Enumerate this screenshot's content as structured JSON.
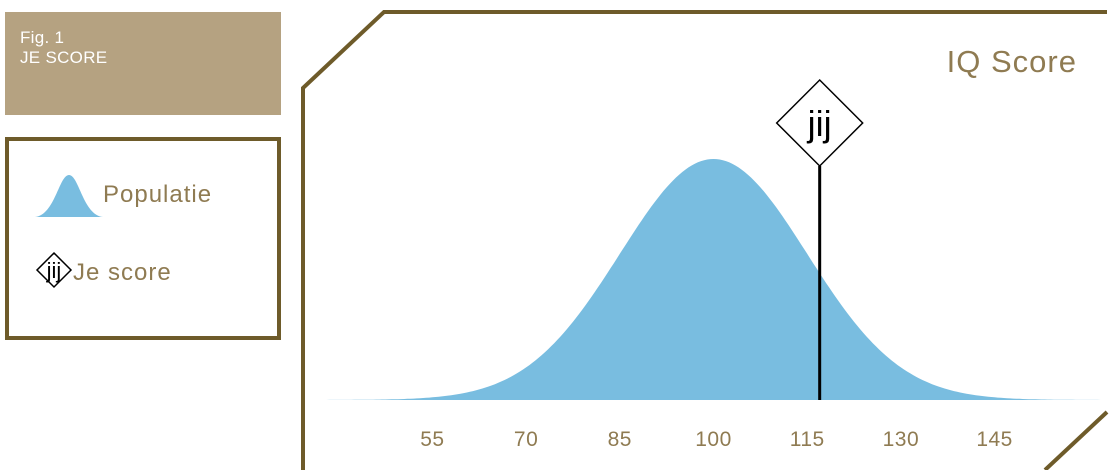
{
  "figure": {
    "label": "Fig. 1",
    "title": "JE SCORE"
  },
  "legend": {
    "population_label": "Populatie",
    "score_marker_text": "jij",
    "score_label": "Je score"
  },
  "colors": {
    "panel": "#b5a281",
    "frame": "#6e5b2a",
    "text": "#8f7b52",
    "curve": "#79bde0"
  },
  "chart_data": {
    "type": "area",
    "title": "IQ Score",
    "distribution": {
      "kind": "normal",
      "mean": 100,
      "sd": 15
    },
    "x_ticks": [
      55,
      70,
      85,
      100,
      115,
      130,
      145
    ],
    "xlim": [
      37,
      163
    ],
    "marker": {
      "label": "jij",
      "value": 117
    },
    "series": [
      {
        "name": "Populatie",
        "color": "#79bde0"
      }
    ]
  }
}
